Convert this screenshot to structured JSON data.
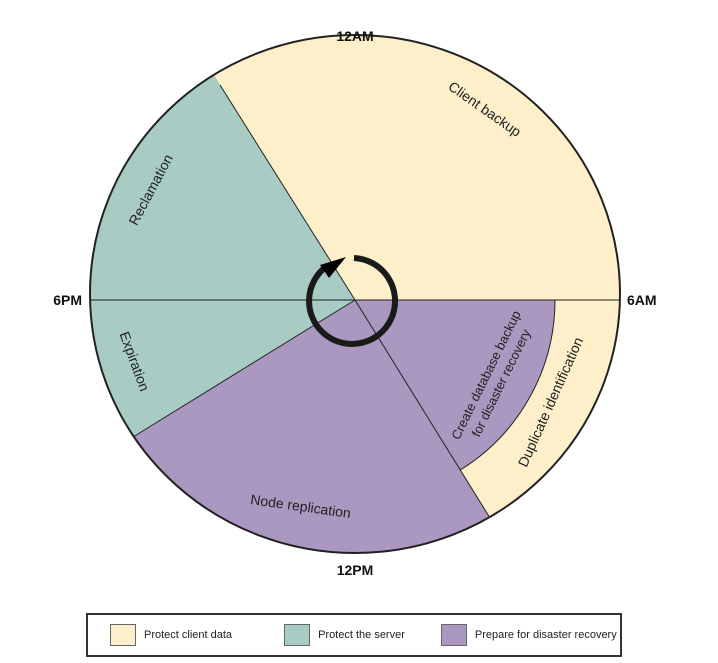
{
  "clock_labels": {
    "top": "12AM",
    "right": "6AM",
    "bottom": "12PM",
    "left": "6PM"
  },
  "segments": {
    "client_backup": "Client backup",
    "reclamation": "Reclamation",
    "expiration": "Expiration",
    "node_replication": "Node replication",
    "db_backup_line1": "Create database backup",
    "db_backup_line2": "for disaster recovery",
    "duplicate_identification": "Duplicate identification"
  },
  "legend": [
    {
      "label": "Protect client data",
      "color": "#fcefc9"
    },
    {
      "label": "Protect the server",
      "color": "#a8cbc3"
    },
    {
      "label": "Prepare for disaster recovery",
      "color": "#ab98c0"
    }
  ],
  "center_icon": "cycle-arrow-icon"
}
